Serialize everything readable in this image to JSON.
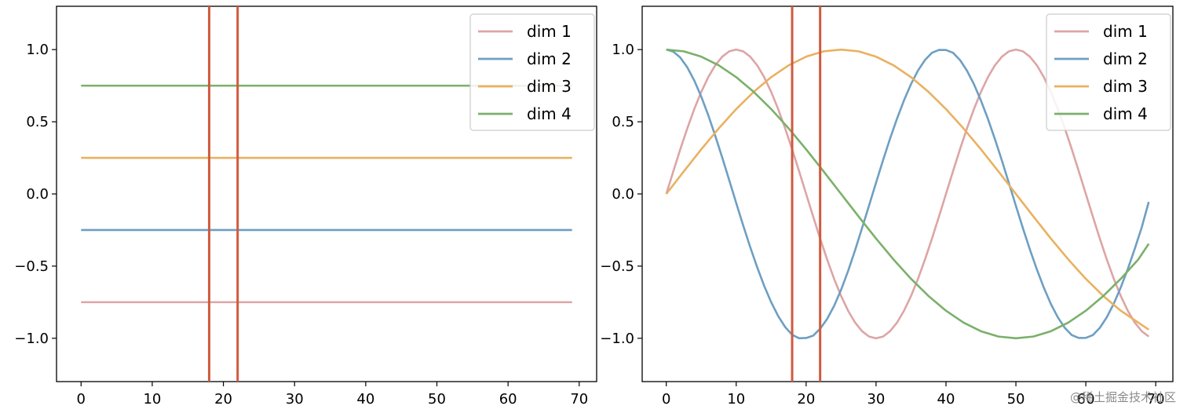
{
  "chart_data": [
    {
      "type": "line",
      "xlim": [
        -3.45,
        72.45
      ],
      "ylim": [
        -1.3,
        1.3
      ],
      "xticks": [
        0,
        10,
        20,
        30,
        40,
        50,
        60,
        70
      ],
      "yticks": [
        1.0,
        0.5,
        0.0,
        -0.5,
        -1.0
      ],
      "xtick_labels": [
        "0",
        "10",
        "20",
        "30",
        "40",
        "50",
        "60",
        "70"
      ],
      "ytick_labels": [
        "1.0",
        "0.5",
        "0.0",
        "−0.5",
        "−1.0"
      ],
      "vlines": [
        18,
        22
      ],
      "vline_color": "#d05a3f",
      "legend": {
        "position": "top-right"
      },
      "series": [
        {
          "name": "dim 1",
          "color": "#dda5a6",
          "x": [
            0,
            69
          ],
          "y": [
            -0.75,
            -0.75
          ]
        },
        {
          "name": "dim 2",
          "color": "#6e9fc2",
          "x": [
            0,
            69
          ],
          "y": [
            -0.25,
            -0.25
          ]
        },
        {
          "name": "dim 3",
          "color": "#e9b160",
          "x": [
            0,
            69
          ],
          "y": [
            0.25,
            0.25
          ]
        },
        {
          "name": "dim 4",
          "color": "#7bb06a",
          "x": [
            0,
            69
          ],
          "y": [
            0.75,
            0.75
          ]
        }
      ]
    },
    {
      "type": "line",
      "xlim": [
        -3.45,
        72.45
      ],
      "ylim": [
        -1.3,
        1.3
      ],
      "xticks": [
        0,
        10,
        20,
        30,
        40,
        50,
        60,
        70
      ],
      "yticks": [
        1.0,
        0.5,
        0.0,
        -0.5,
        -1.0
      ],
      "xtick_labels": [
        "0",
        "10",
        "20",
        "30",
        "40",
        "50",
        "60",
        "70"
      ],
      "ytick_labels": [
        "1.0",
        "0.5",
        "0.0",
        "−0.5",
        "−1.0"
      ],
      "vlines": [
        18,
        22
      ],
      "vline_color": "#d05a3f",
      "legend": {
        "position": "top-right"
      },
      "series": [
        {
          "name": "dim 1",
          "color": "#dda5a6",
          "x": [
            0,
            1,
            2,
            3,
            4,
            5,
            6,
            7,
            8,
            9,
            10,
            11,
            12,
            13,
            14,
            15,
            16,
            17,
            18,
            19,
            20,
            21,
            22,
            23,
            24,
            25,
            26,
            27,
            28,
            29,
            30,
            31,
            32,
            33,
            34,
            35,
            36,
            37,
            38,
            39,
            40,
            41,
            42,
            43,
            44,
            45,
            46,
            47,
            48,
            49,
            50,
            51,
            52,
            53,
            54,
            55,
            56,
            57,
            58,
            59,
            60,
            61,
            62,
            63,
            64,
            65,
            66,
            67,
            68,
            69
          ],
          "y": [
            0,
            0.156,
            0.309,
            0.454,
            0.588,
            0.707,
            0.809,
            0.891,
            0.951,
            0.988,
            1,
            0.988,
            0.951,
            0.891,
            0.809,
            0.707,
            0.588,
            0.454,
            0.309,
            0.156,
            0,
            -0.156,
            -0.309,
            -0.454,
            -0.588,
            -0.707,
            -0.809,
            -0.891,
            -0.951,
            -0.988,
            -1,
            -0.988,
            -0.951,
            -0.891,
            -0.809,
            -0.707,
            -0.588,
            -0.454,
            -0.309,
            -0.156,
            0,
            0.156,
            0.309,
            0.454,
            0.588,
            0.707,
            0.809,
            0.891,
            0.951,
            0.988,
            1,
            0.988,
            0.951,
            0.891,
            0.809,
            0.707,
            0.588,
            0.454,
            0.309,
            0.156,
            0,
            -0.156,
            -0.309,
            -0.454,
            -0.588,
            -0.707,
            -0.809,
            -0.891,
            -0.951,
            -0.988
          ]
        },
        {
          "name": "dim 2",
          "color": "#6e9fc2",
          "x": [
            0,
            1,
            2,
            3,
            4,
            5,
            6,
            7,
            8,
            9,
            10,
            11,
            12,
            13,
            14,
            15,
            16,
            17,
            18,
            19,
            20,
            21,
            22,
            23,
            24,
            25,
            26,
            27,
            28,
            29,
            30,
            31,
            32,
            33,
            34,
            35,
            36,
            37,
            38,
            39,
            40,
            41,
            42,
            43,
            44,
            45,
            46,
            47,
            48,
            49,
            50,
            51,
            52,
            53,
            54,
            55,
            56,
            57,
            58,
            59,
            60,
            61,
            62,
            63,
            64,
            65,
            66,
            67,
            68,
            69
          ],
          "y": [
            1,
            0.986,
            0.945,
            0.877,
            0.786,
            0.674,
            0.546,
            0.403,
            0.252,
            0.095,
            -0.063,
            -0.219,
            -0.368,
            -0.508,
            -0.637,
            -0.75,
            -0.846,
            -0.922,
            -0.976,
            -1.0,
            -0.998,
            -0.982,
            -0.934,
            -0.866,
            -0.776,
            -0.664,
            -0.534,
            -0.39,
            -0.236,
            -0.08,
            0.078,
            0.234,
            0.383,
            0.522,
            0.649,
            0.761,
            0.855,
            0.928,
            0.978,
            0.998,
            0.997,
            0.978,
            0.928,
            0.854,
            0.76,
            0.647,
            0.52,
            0.38,
            0.231,
            0.075,
            -0.082,
            -0.237,
            -0.385,
            -0.523,
            -0.65,
            -0.762,
            -0.855,
            -0.928,
            -0.978,
            -0.998,
            -0.997,
            -0.978,
            -0.928,
            -0.854,
            -0.76,
            -0.647,
            -0.521,
            -0.38,
            -0.231,
            -0.055
          ]
        },
        {
          "name": "dim 3",
          "color": "#e9b160",
          "x": [
            0,
            2.5,
            5,
            7.5,
            10,
            12.5,
            15,
            17.5,
            20,
            22.5,
            25,
            27.5,
            30,
            32.5,
            35,
            37.5,
            40,
            42.5,
            45,
            47.5,
            50,
            52.5,
            55,
            57.5,
            60,
            62.5,
            65,
            67.5,
            69
          ],
          "y": [
            0,
            0.156,
            0.309,
            0.454,
            0.588,
            0.707,
            0.809,
            0.891,
            0.951,
            0.988,
            1,
            0.988,
            0.951,
            0.891,
            0.809,
            0.707,
            0.588,
            0.454,
            0.309,
            0.156,
            0,
            -0.156,
            -0.309,
            -0.454,
            -0.588,
            -0.707,
            -0.809,
            -0.891,
            -0.94
          ]
        },
        {
          "name": "dim 4",
          "color": "#7bb06a",
          "x": [
            0,
            2.5,
            5,
            7.5,
            10,
            12.5,
            15,
            17.5,
            20,
            22.5,
            25,
            27.5,
            30,
            32.5,
            35,
            37.5,
            40,
            42.5,
            45,
            47.5,
            50,
            52.5,
            55,
            57.5,
            60,
            62.5,
            65,
            67.5,
            69
          ],
          "y": [
            1,
            0.988,
            0.951,
            0.891,
            0.809,
            0.707,
            0.588,
            0.454,
            0.309,
            0.156,
            0,
            -0.156,
            -0.309,
            -0.454,
            -0.588,
            -0.707,
            -0.809,
            -0.891,
            -0.951,
            -0.988,
            -1,
            -0.988,
            -0.951,
            -0.891,
            -0.809,
            -0.707,
            -0.588,
            -0.454,
            -0.345
          ]
        }
      ]
    }
  ],
  "watermark": "@稀土掘金技术社区"
}
